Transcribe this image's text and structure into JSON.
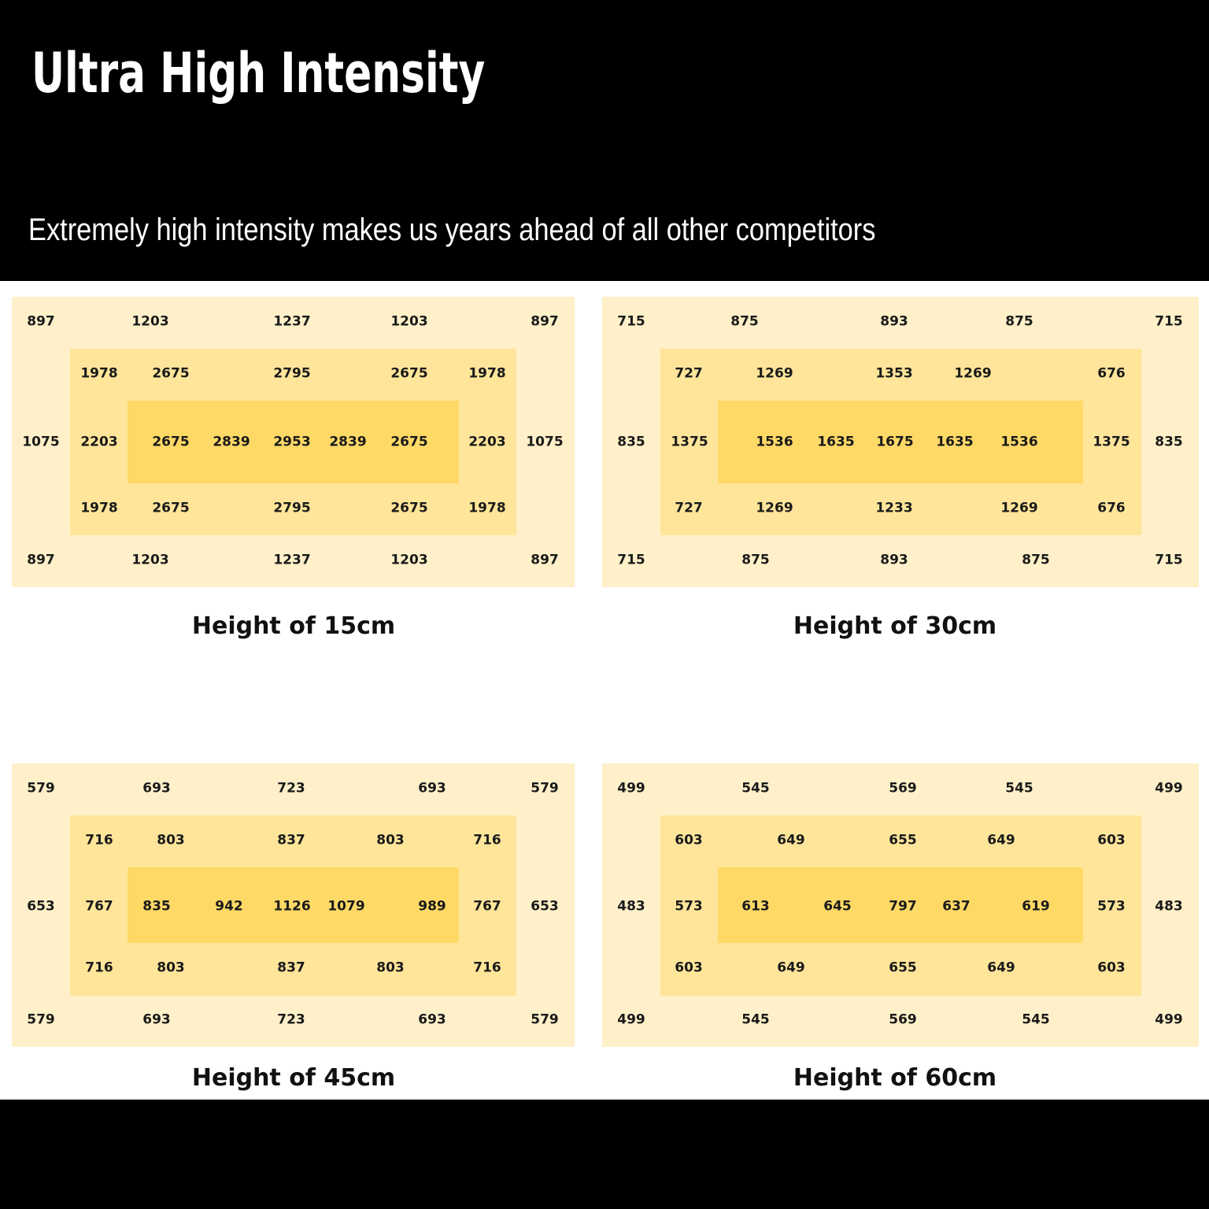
{
  "header": {
    "title": "Ultra High Intensity",
    "subtitle": "Extremely high intensity makes us years ahead of all other competitors"
  },
  "colors": {
    "header_bg": "#000000",
    "outer_zone": "#fff0c9",
    "middle_zone": "#ffe59a",
    "inner_zone": "#ffd966",
    "text": "#1a1a1a"
  },
  "chart_data": [
    {
      "type": "heatmap",
      "caption": "Height of 15cm",
      "rows": [
        [
          "897",
          "1203",
          "1237",
          "1203",
          "897"
        ],
        [
          "1978",
          "2675",
          "2795",
          "2675",
          "1978"
        ],
        [
          "1075",
          "2203",
          "2675",
          "2839",
          "2953",
          "2839",
          "2675",
          "2203",
          "1075"
        ],
        [
          "1978",
          "2675",
          "2795",
          "2675",
          "1978"
        ],
        [
          "897",
          "1203",
          "1237",
          "1203",
          "897"
        ]
      ]
    },
    {
      "type": "heatmap",
      "caption": "Height of 30cm",
      "rows": [
        [
          "715",
          "875",
          "893",
          "875",
          "715"
        ],
        [
          "727",
          "1269",
          "1353",
          "1269",
          "676"
        ],
        [
          "835",
          "1375",
          "1536",
          "1635",
          "1675",
          "1635",
          "1536",
          "1375",
          "835"
        ],
        [
          "727",
          "1269",
          "1233",
          "1269",
          "676"
        ],
        [
          "715",
          "875",
          "893",
          "875",
          "715"
        ]
      ]
    },
    {
      "type": "heatmap",
      "caption": "Height of 45cm",
      "rows": [
        [
          "579",
          "693",
          "723",
          "693",
          "579"
        ],
        [
          "716",
          "803",
          "837",
          "803",
          "716"
        ],
        [
          "653",
          "767",
          "835",
          "942",
          "1126",
          "1079",
          "989",
          "767",
          "653"
        ],
        [
          "716",
          "803",
          "837",
          "803",
          "716"
        ],
        [
          "579",
          "693",
          "723",
          "693",
          "579"
        ]
      ]
    },
    {
      "type": "heatmap",
      "caption": "Height of 60cm",
      "rows": [
        [
          "499",
          "545",
          "569",
          "545",
          "499"
        ],
        [
          "603",
          "649",
          "655",
          "649",
          "603"
        ],
        [
          "483",
          "573",
          "613",
          "645",
          "797",
          "637",
          "619",
          "573",
          "483"
        ],
        [
          "603",
          "649",
          "655",
          "649",
          "603"
        ],
        [
          "499",
          "545",
          "569",
          "545",
          "499"
        ]
      ]
    }
  ]
}
